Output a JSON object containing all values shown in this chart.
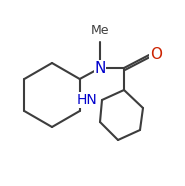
{
  "bg_color": "#ffffff",
  "bond_color": "#3d3d3d",
  "N_color": "#0000cc",
  "O_color": "#cc2200",
  "line_width": 1.5,
  "figsize": [
    1.85,
    1.86
  ],
  "dpi": 100,
  "N_label": "N",
  "O_label": "O",
  "NH_label": "HN",
  "Me_label": "Me",
  "N_fontsize": 11,
  "O_fontsize": 11,
  "NH_fontsize": 10,
  "Me_fontsize": 9
}
